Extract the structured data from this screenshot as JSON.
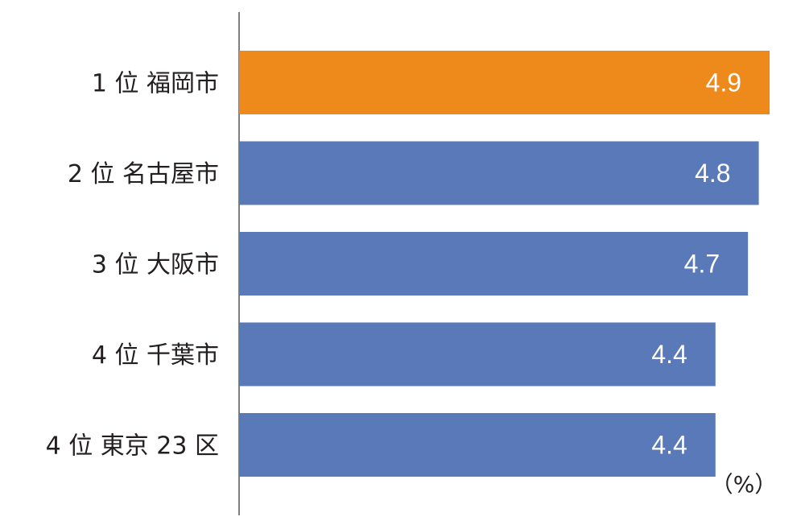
{
  "chart_data": {
    "type": "bar",
    "orientation": "horizontal",
    "categories": [
      "1 位 福岡市",
      "2 位 名古屋市",
      "3 位 大阪市",
      "4 位 千葉市",
      "4 位 東京 23 区"
    ],
    "values": [
      4.9,
      4.8,
      4.7,
      4.4,
      4.4
    ],
    "value_labels": [
      "4.9",
      "4.8",
      "4.7",
      "4.4",
      "4.4"
    ],
    "unit_label": "（%）",
    "colors": [
      "#ee8a1c",
      "#5a79b8",
      "#5a79b8",
      "#5a79b8",
      "#5a79b8"
    ],
    "axis_color": "#555555",
    "grid": false
  }
}
